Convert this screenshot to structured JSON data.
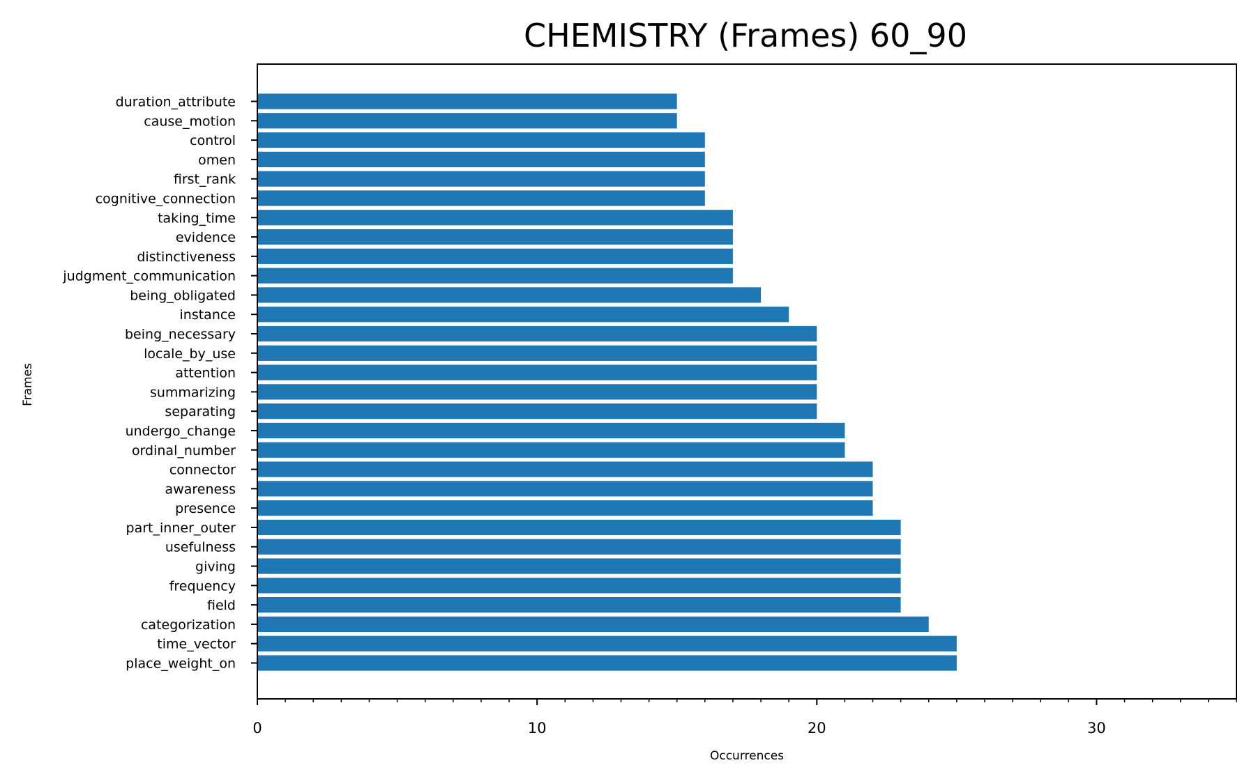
{
  "chart_data": {
    "type": "bar",
    "orientation": "horizontal",
    "title": "CHEMISTRY (Frames) 60_90",
    "xlabel": "Occurrences",
    "ylabel": "Frames",
    "xlim": [
      0,
      35
    ],
    "xticks": [
      0,
      10,
      20,
      30
    ],
    "grid": false,
    "bar_color": "#1f77b4",
    "categories": [
      "duration_attribute",
      "cause_motion",
      "control",
      "omen",
      "first_rank",
      "cognitive_connection",
      "taking_time",
      "evidence",
      "distinctiveness",
      "judgment_communication",
      "being_obligated",
      "instance",
      "being_necessary",
      "locale_by_use",
      "attention",
      "summarizing",
      "separating",
      "undergo_change",
      "ordinal_number",
      "connector",
      "awareness",
      "presence",
      "part_inner_outer",
      "usefulness",
      "giving",
      "frequency",
      "field",
      "categorization",
      "time_vector",
      "place_weight_on"
    ],
    "values": [
      15,
      15,
      16,
      16,
      16,
      16,
      17,
      17,
      17,
      17,
      18,
      19,
      20,
      20,
      20,
      20,
      20,
      21,
      21,
      22,
      22,
      22,
      23,
      23,
      23,
      23,
      23,
      24,
      25,
      25
    ]
  }
}
